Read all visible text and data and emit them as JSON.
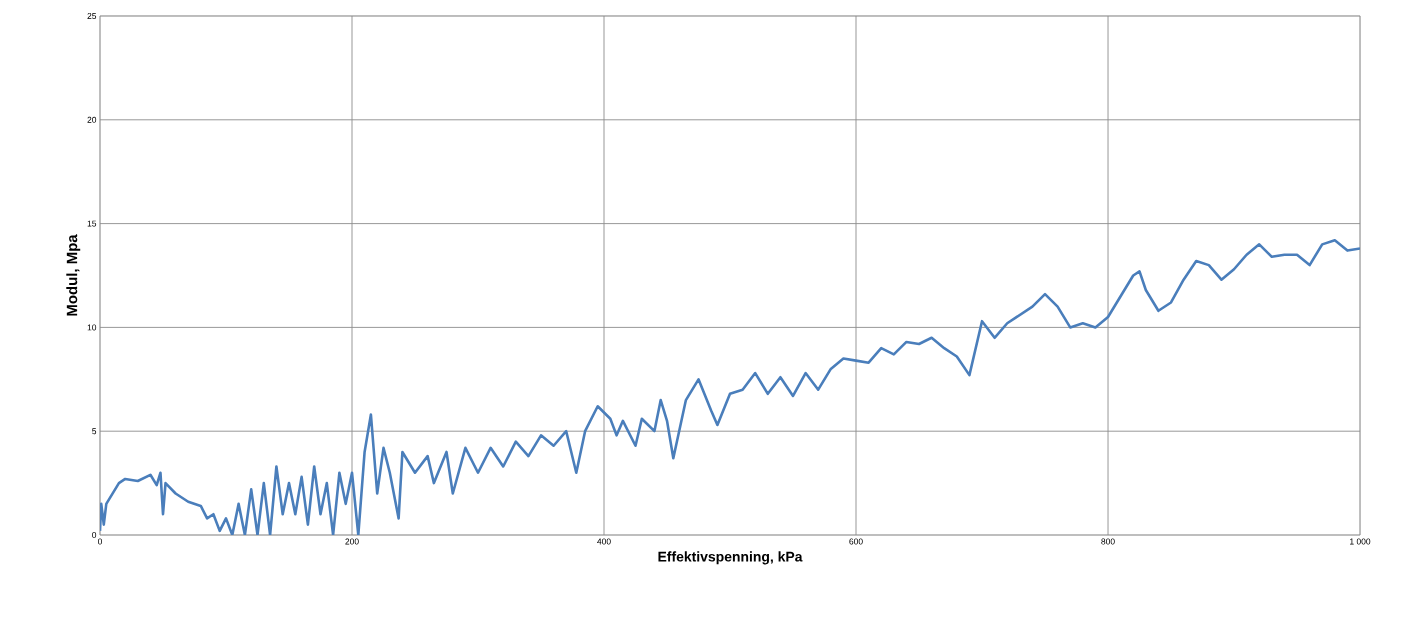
{
  "chart_data": {
    "type": "line",
    "xlabel": "Effektivspenning, kPa",
    "ylabel": "Modul, Mpa",
    "xlim": [
      0,
      1000
    ],
    "ylim": [
      0,
      25
    ],
    "xticks": [
      0,
      200,
      400,
      600,
      800,
      {
        "value": 1000,
        "label": "1 000"
      }
    ],
    "yticks": [
      0,
      5,
      10,
      15,
      20,
      25
    ],
    "grid": true,
    "marker": "none",
    "line_style": "solid",
    "x": [
      0,
      1,
      3,
      5,
      10,
      15,
      20,
      30,
      40,
      45,
      48,
      50,
      52,
      60,
      70,
      80,
      85,
      90,
      95,
      100,
      105,
      110,
      115,
      120,
      125,
      130,
      135,
      140,
      145,
      150,
      155,
      160,
      165,
      170,
      175,
      180,
      185,
      190,
      195,
      200,
      205,
      210,
      215,
      220,
      225,
      230,
      237,
      240,
      250,
      260,
      265,
      275,
      280,
      290,
      300,
      310,
      320,
      330,
      340,
      350,
      360,
      370,
      378,
      385,
      395,
      405,
      410,
      415,
      425,
      430,
      440,
      445,
      450,
      455,
      465,
      475,
      485,
      490,
      500,
      510,
      520,
      530,
      540,
      550,
      560,
      570,
      580,
      590,
      600,
      610,
      620,
      630,
      640,
      650,
      660,
      670,
      680,
      690,
      700,
      710,
      720,
      740,
      750,
      760,
      770,
      780,
      790,
      800,
      810,
      820,
      825,
      830,
      840,
      850,
      860,
      870,
      880,
      890,
      900,
      910,
      920,
      930,
      940,
      950,
      960,
      970,
      980,
      990,
      1000
    ],
    "series": [
      {
        "color": "#4a7ebb",
        "values": [
          0.2,
          1.5,
          0.5,
          1.5,
          2.0,
          2.5,
          2.7,
          2.6,
          2.9,
          2.4,
          3.0,
          1.0,
          2.5,
          2.0,
          1.6,
          1.4,
          0.8,
          1.0,
          0.2,
          0.8,
          0,
          1.5,
          0,
          2.2,
          0,
          2.5,
          0,
          3.3,
          1.0,
          2.5,
          1.0,
          2.8,
          0.5,
          3.3,
          1.0,
          2.5,
          0,
          3.0,
          1.5,
          3.0,
          0,
          4.0,
          5.8,
          2.0,
          4.2,
          3.0,
          0.8,
          4.0,
          3.0,
          3.8,
          2.5,
          4.0,
          2.0,
          4.2,
          3.0,
          4.2,
          3.3,
          4.5,
          3.8,
          4.8,
          4.3,
          5.0,
          3.0,
          5.0,
          6.2,
          5.6,
          4.8,
          5.5,
          4.3,
          5.6,
          5.0,
          6.5,
          5.5,
          3.7,
          6.5,
          7.5,
          6.0,
          5.3,
          6.8,
          7.0,
          7.8,
          6.8,
          7.6,
          6.7,
          7.8,
          7.0,
          8.0,
          8.5,
          8.4,
          8.3,
          9.0,
          8.7,
          9.3,
          9.2,
          9.5,
          9.0,
          8.6,
          7.7,
          10.3,
          9.5,
          10.2,
          11.0,
          11.6,
          11.0,
          10.0,
          10.2,
          10.0,
          10.5,
          11.5,
          12.5,
          12.7,
          11.8,
          10.8,
          11.2,
          12.3,
          13.2,
          13.0,
          12.3,
          12.8,
          13.5,
          14.0,
          13.4,
          13.5,
          13.5,
          13.0,
          14.0,
          14.2,
          13.7,
          13.8
        ]
      }
    ]
  }
}
